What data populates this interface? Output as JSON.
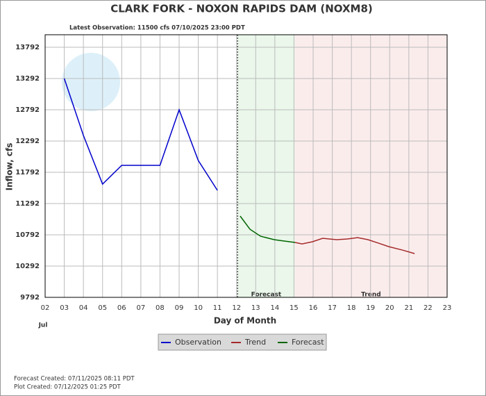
{
  "chart_data": {
    "type": "line",
    "title": "CLARK FORK - NOXON RAPIDS DAM  (NOXM8)",
    "subtitle": "Latest Observation: 11500 cfs 07/10/2025 23:00 PDT",
    "ylabel": "Inflow, cfs",
    "xlabel": "Day of Month",
    "month_label": "Jul",
    "footer": [
      "Forecast Created: 07/11/2025 08:11 PDT",
      "Plot Created: 07/12/2025 01:25 PDT"
    ],
    "xlim": [
      2,
      23
    ],
    "ylim": [
      9792,
      13992
    ],
    "xticks": [
      {
        "value": 2,
        "label": "02"
      },
      {
        "value": 3,
        "label": "03"
      },
      {
        "value": 4,
        "label": "04"
      },
      {
        "value": 5,
        "label": "05"
      },
      {
        "value": 6,
        "label": "06"
      },
      {
        "value": 7,
        "label": "07"
      },
      {
        "value": 8,
        "label": "08"
      },
      {
        "value": 9,
        "label": "09"
      },
      10,
      11,
      12,
      13,
      14,
      15,
      16,
      17,
      18,
      19,
      20,
      21,
      22,
      23
    ],
    "yticks": [
      9792,
      10292,
      10792,
      11292,
      11792,
      12292,
      12792,
      13292,
      13792
    ],
    "grid": true,
    "regions": [
      {
        "label": "Forecast",
        "start": 12.05,
        "end": 15.05,
        "color": "#eaf7ea"
      },
      {
        "label": "Trend",
        "start": 15.05,
        "end": 23,
        "color": "#fbecec"
      }
    ],
    "series": [
      {
        "name": "Observation",
        "color": "#0000cc",
        "x": [
          3,
          4,
          5,
          6,
          7,
          8,
          9,
          10,
          11
        ],
        "values": [
          13292,
          12381,
          11603,
          11903,
          11903,
          11903,
          12792,
          11981,
          11503
        ]
      },
      {
        "name": "Trend",
        "color": "#a52a2a",
        "x": [
          15.06,
          15.42,
          15.96,
          16.5,
          17.23,
          17.78,
          18.32,
          18.87,
          19.41,
          19.95,
          20.68,
          21.3
        ],
        "values": [
          10670,
          10647,
          10681,
          10736,
          10714,
          10725,
          10747,
          10714,
          10659,
          10603,
          10547,
          10492
        ]
      },
      {
        "name": "Forecast",
        "color": "#006400",
        "x": [
          12.19,
          12.7,
          13.25,
          13.97,
          14.5,
          15.06
        ],
        "values": [
          11092,
          10881,
          10770,
          10714,
          10692,
          10670
        ]
      }
    ]
  }
}
